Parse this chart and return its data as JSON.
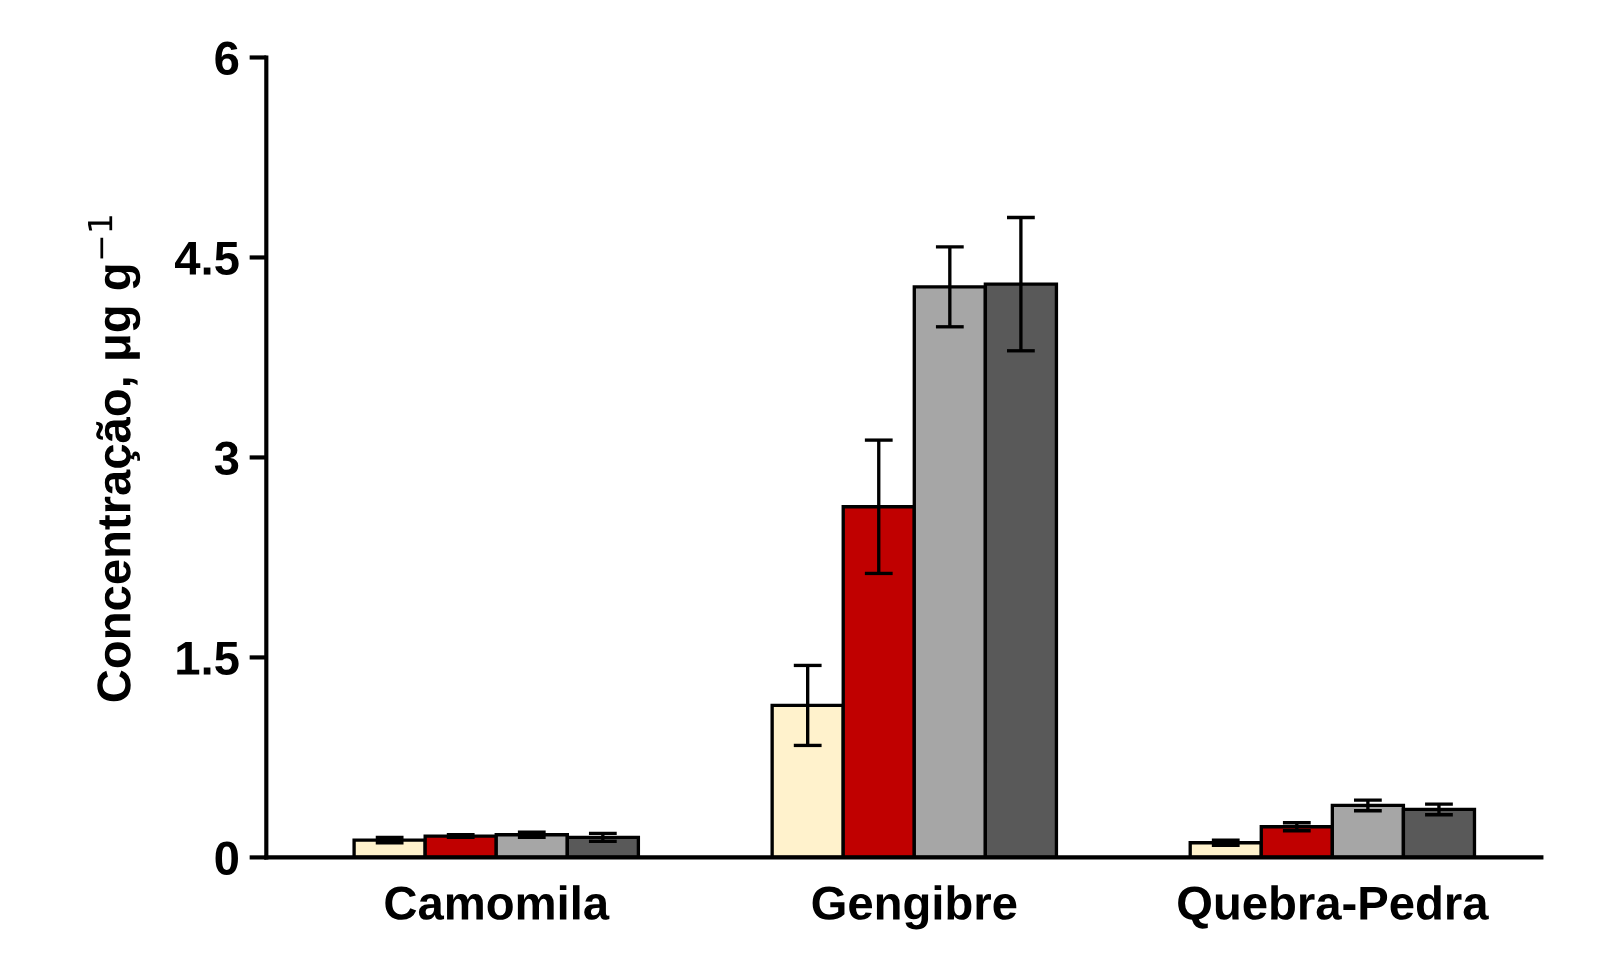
{
  "chart_data": {
    "type": "bar",
    "ylabel": "Concentração, μg g$^{−1}$",
    "categories": [
      "Camomila",
      "Gengibre",
      "Quebra-Pedra"
    ],
    "series": [
      {
        "color": "#fff2cc",
        "values": [
          0.13,
          1.14,
          0.11
        ],
        "errors": [
          0.02,
          0.3,
          0.02
        ]
      },
      {
        "color": "#c00000",
        "values": [
          0.16,
          2.63,
          0.23
        ],
        "errors": [
          0.01,
          0.5,
          0.03
        ]
      },
      {
        "color": "#a6a6a6",
        "values": [
          0.17,
          4.28,
          0.39
        ],
        "errors": [
          0.02,
          0.3,
          0.04
        ]
      },
      {
        "color": "#595959",
        "values": [
          0.15,
          4.3,
          0.36
        ],
        "errors": [
          0.03,
          0.5,
          0.04
        ]
      }
    ],
    "ylim": [
      0,
      6
    ],
    "yticks": [
      0,
      1.5,
      3,
      4.5,
      6
    ],
    "grid": false,
    "legend": false
  }
}
